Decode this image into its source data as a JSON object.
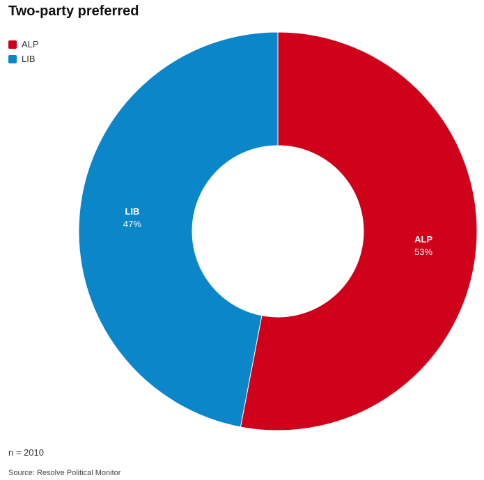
{
  "chart_data": {
    "type": "pie",
    "title": "Two-party preferred",
    "categories": [
      "ALP",
      "LIB"
    ],
    "values": [
      53,
      47
    ],
    "value_labels": [
      "53%",
      "47%"
    ],
    "colors": [
      "#d0021b",
      "#0a86c9"
    ],
    "donut": true,
    "legend_position": "top-left"
  },
  "footer": {
    "sample": "n = 2010",
    "source": "Source: Resolve Political Monitor"
  }
}
